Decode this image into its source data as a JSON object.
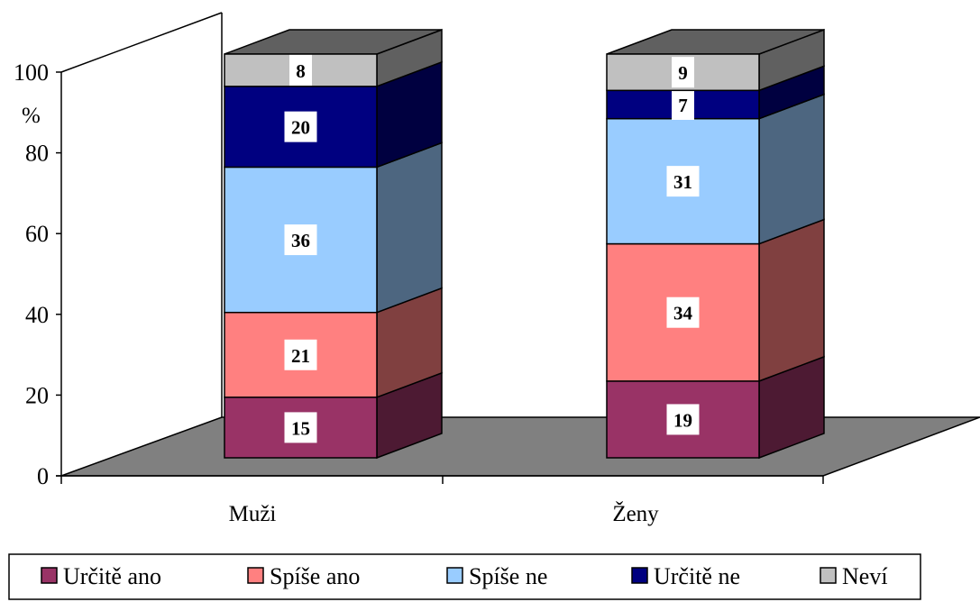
{
  "chart_data": {
    "type": "bar",
    "stacked": true,
    "style": "3d",
    "ylabel": "%",
    "ylim": [
      0,
      100
    ],
    "yticks": [
      "0",
      "20",
      "40",
      "60",
      "80",
      "100"
    ],
    "categories": [
      "Muži",
      "Ženy"
    ],
    "series": [
      {
        "name": "Určitě ano",
        "values": [
          15,
          19
        ],
        "color": "#993366"
      },
      {
        "name": "Spíše ano",
        "values": [
          21,
          34
        ],
        "color": "#FF8080"
      },
      {
        "name": "Spíše ne",
        "values": [
          36,
          31
        ],
        "color": "#99CCFF"
      },
      {
        "name": "Určitě ne",
        "values": [
          20,
          7
        ],
        "color": "#000080"
      },
      {
        "name": "Neví",
        "values": [
          8,
          9
        ],
        "color": "#C0C0C0"
      }
    ],
    "legend": "bottom",
    "grid": false,
    "floor_color": "#808080"
  }
}
